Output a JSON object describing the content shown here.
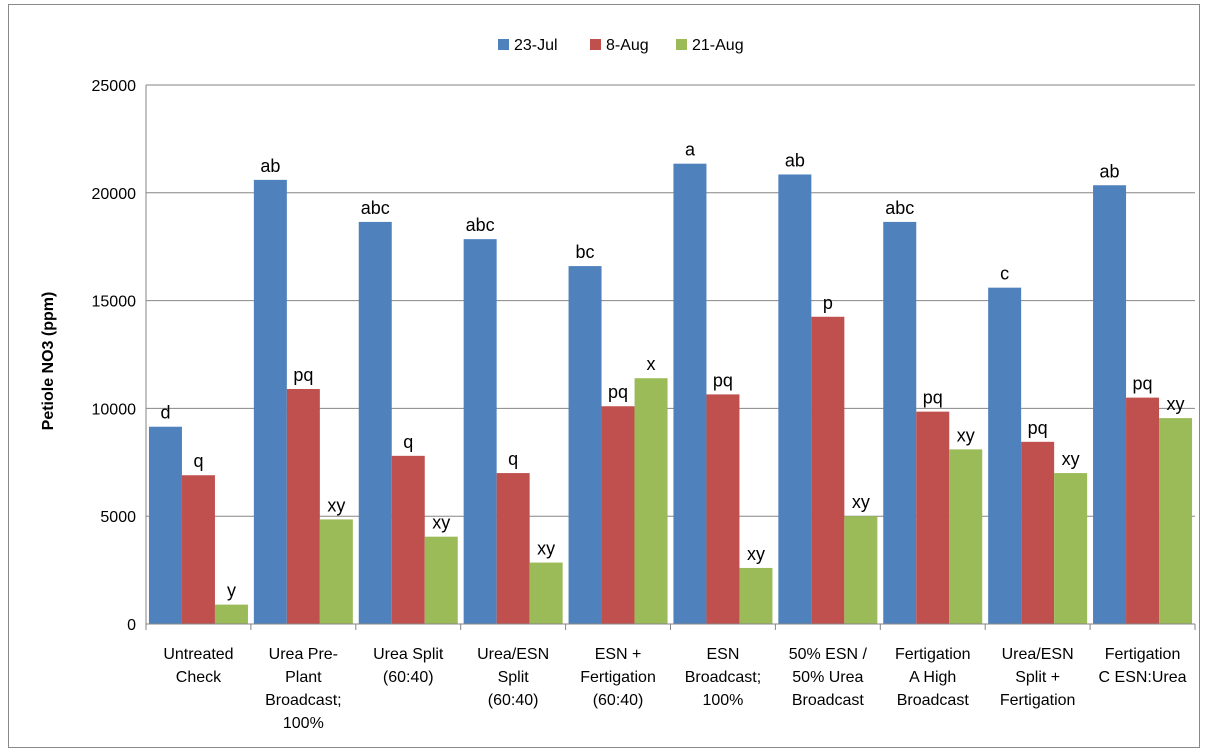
{
  "chart_data": {
    "type": "bar",
    "title": "",
    "xlabel": "",
    "ylabel": "Petiole NO3 (ppm)",
    "ylim": [
      0,
      25000
    ],
    "yticks": [
      0,
      5000,
      10000,
      15000,
      20000,
      25000
    ],
    "grid": true,
    "legend_position": "top-center",
    "categories": [
      [
        "Untreated",
        "Check"
      ],
      [
        "Urea Pre-",
        "Plant",
        "Broadcast;",
        "100%"
      ],
      [
        "Urea Split",
        "(60:40)"
      ],
      [
        "Urea/ESN",
        "Split",
        "(60:40)"
      ],
      [
        "ESN +",
        "Fertigation",
        "(60:40)"
      ],
      [
        "ESN",
        "Broadcast;",
        "100%"
      ],
      [
        "50% ESN /",
        "50% Urea",
        "Broadcast"
      ],
      [
        "Fertigation",
        "A High",
        "Broadcast"
      ],
      [
        "Urea/ESN",
        "Split +",
        "Fertigation"
      ],
      [
        "Fertigation",
        "C ESN:Urea"
      ]
    ],
    "series": [
      {
        "name": "23-Jul",
        "color": "#4F81BD",
        "values": [
          9150,
          20600,
          18650,
          17850,
          16600,
          21350,
          20850,
          18650,
          15600,
          20350
        ],
        "labels": [
          "d",
          "ab",
          "abc",
          "abc",
          "bc",
          "a",
          "ab",
          "abc",
          "c",
          "ab"
        ]
      },
      {
        "name": "8-Aug",
        "color": "#C0504D",
        "values": [
          6900,
          10900,
          7800,
          7000,
          10100,
          10650,
          14250,
          9850,
          8450,
          10500
        ],
        "labels": [
          "q",
          "pq",
          "q",
          "q",
          "pq",
          "pq",
          "p",
          "pq",
          "pq",
          "pq"
        ]
      },
      {
        "name": "21-Aug",
        "color": "#9BBB59",
        "values": [
          900,
          4850,
          4050,
          2850,
          11400,
          2600,
          5000,
          8100,
          7000,
          9550
        ],
        "labels": [
          "y",
          "xy",
          "xy",
          "xy",
          "x",
          "xy",
          "xy",
          "xy",
          "xy",
          "xy"
        ]
      }
    ]
  }
}
